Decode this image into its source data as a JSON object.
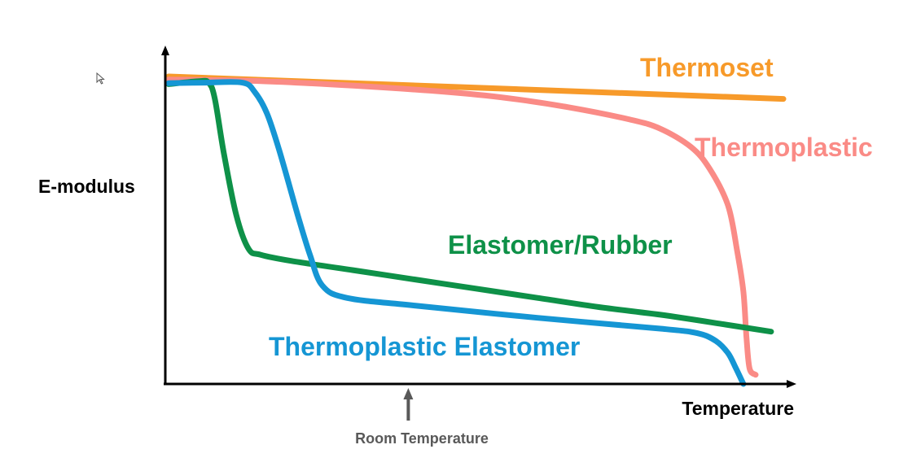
{
  "chart_data": {
    "type": "line",
    "xlabel": "Temperature",
    "ylabel": "E-modulus",
    "xlim": [
      0,
      100
    ],
    "ylim": [
      0,
      100
    ],
    "grid": false,
    "annotation": {
      "label": "Room Temperature",
      "x": 39,
      "color": "#595959"
    },
    "series": [
      {
        "name": "Thermoset",
        "color": "#F79A2A",
        "x": [
          0,
          100
        ],
        "y": [
          100,
          92.7
        ]
      },
      {
        "name": "Thermoplastic",
        "color": "#FA8B86",
        "x": [
          0,
          15,
          30,
          45,
          55,
          65,
          75,
          80,
          85,
          88,
          91,
          92.5,
          93.5,
          94,
          94.5,
          95.5
        ],
        "y": [
          99,
          98.5,
          97,
          95,
          93,
          90,
          86,
          83,
          77,
          70,
          58,
          43,
          30,
          15,
          5,
          3
        ]
      },
      {
        "name": "Elastomer/Rubber",
        "color": "#0E9148",
        "x": [
          0,
          5,
          6.5,
          7.5,
          9,
          11,
          13,
          15,
          20,
          30,
          40,
          50,
          60,
          70,
          80,
          90,
          98
        ],
        "y": [
          97.5,
          98.5,
          98,
          93,
          75,
          55,
          44,
          42,
          40,
          37,
          34,
          31,
          28,
          25,
          22.5,
          19.5,
          17
        ]
      },
      {
        "name": "Thermoplastic Elastomer",
        "color": "#1596D4",
        "x": [
          0,
          6,
          12,
          14,
          16,
          18,
          21,
          23,
          25,
          29,
          40,
          60,
          80,
          86,
          89,
          91,
          92.3,
          93.5
        ],
        "y": [
          97.8,
          98,
          98,
          95,
          88,
          76,
          55,
          42,
          32,
          28,
          25.5,
          21.5,
          18,
          16.5,
          14,
          10,
          5,
          0
        ]
      }
    ]
  }
}
